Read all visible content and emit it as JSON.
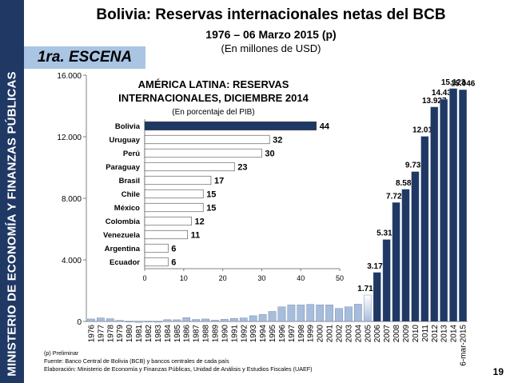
{
  "sidebar": {
    "text": "MINISTERIO DE ECONOMÍA Y FINANZAS PÚBLICAS"
  },
  "header": {
    "title": "Bolivia: Reservas internacionales netas del BCB",
    "subtitle": "1976 – 06 Marzo 2015 (p)",
    "units": "(En millones de USD)"
  },
  "badge": "1ra. ESCENA",
  "chart_data": [
    {
      "type": "bar",
      "title": "",
      "xlabel": "",
      "ylabel": "",
      "ylim": [
        0,
        16000
      ],
      "yticks": [
        "0",
        "4.000",
        "8.000",
        "12.000",
        "16.000"
      ],
      "categories": [
        "1976",
        "1977",
        "1978",
        "1979",
        "1980",
        "1981",
        "1982",
        "1983",
        "1984",
        "1985",
        "1986",
        "1987",
        "1988",
        "1989",
        "1990",
        "1991",
        "1992",
        "1993",
        "1994",
        "1995",
        "1996",
        "1997",
        "1998",
        "1999",
        "2000",
        "2001",
        "2002",
        "2003",
        "2004",
        "2005",
        "2006",
        "2007",
        "2008",
        "2009",
        "2010",
        "2011",
        "2012",
        "2013",
        "2014",
        "6-mar-2015"
      ],
      "values": [
        160,
        230,
        180,
        70,
        -10,
        -60,
        -40,
        -50,
        120,
        110,
        250,
        130,
        160,
        80,
        140,
        200,
        230,
        370,
        450,
        650,
        950,
        1070,
        1070,
        1110,
        1080,
        1080,
        850,
        950,
        1120,
        1714,
        3178,
        5319,
        7722,
        8580,
        9730,
        12019,
        13927,
        14430,
        15123,
        15046
      ],
      "labels": [
        "",
        "",
        "",
        "",
        "",
        "",
        "",
        "",
        "",
        "",
        "",
        "",
        "",
        "",
        "",
        "",
        "",
        "",
        "",
        "",
        "",
        "",
        "",
        "",
        "",
        "",
        "",
        "",
        "",
        "1.714",
        "3.178",
        "5.319",
        "7.722",
        "8.580",
        "9.730",
        "12.019",
        "13.927",
        "14.430",
        "15.123",
        "15.046"
      ],
      "colors": {
        "early": "#a6bddb",
        "recent": "#1f3864"
      },
      "grid": false
    },
    {
      "type": "bar",
      "orientation": "horizontal",
      "title": "AMÉRICA LATINA: RESERVAS INTERNACIONALES, DICIEMBRE 2014",
      "title_line1": "AMÉRICA LATINA: RESERVAS",
      "title_line2": "INTERNACIONALES, DICIEMBRE 2014",
      "subtitle": "(En porcentaje del PIB)",
      "categories": [
        "Bolivia",
        "Uruguay",
        "Perú",
        "Paraguay",
        "Brasil",
        "Chile",
        "México",
        "Colombia",
        "Venezuela",
        "Argentina",
        "Ecuador"
      ],
      "values": [
        44,
        32,
        30,
        23,
        17,
        15,
        15,
        12,
        11,
        6,
        6
      ],
      "xlim": [
        0,
        50
      ],
      "xticks": [
        "0",
        "10",
        "20",
        "30",
        "40",
        "50"
      ],
      "colors": {
        "highlight": "#1f3864",
        "other": "#ffffff"
      }
    }
  ],
  "footnotes": [
    "(p) Preliminar",
    "Fuente: Banco Central de Bolivia (BCB) y  bancos centrales de cada país",
    "Elaboración: Ministerio de Economía y Finanzas Públicas, Unidad de Análisis y Estudios Fiscales (UAEF)"
  ],
  "page_number": "19"
}
